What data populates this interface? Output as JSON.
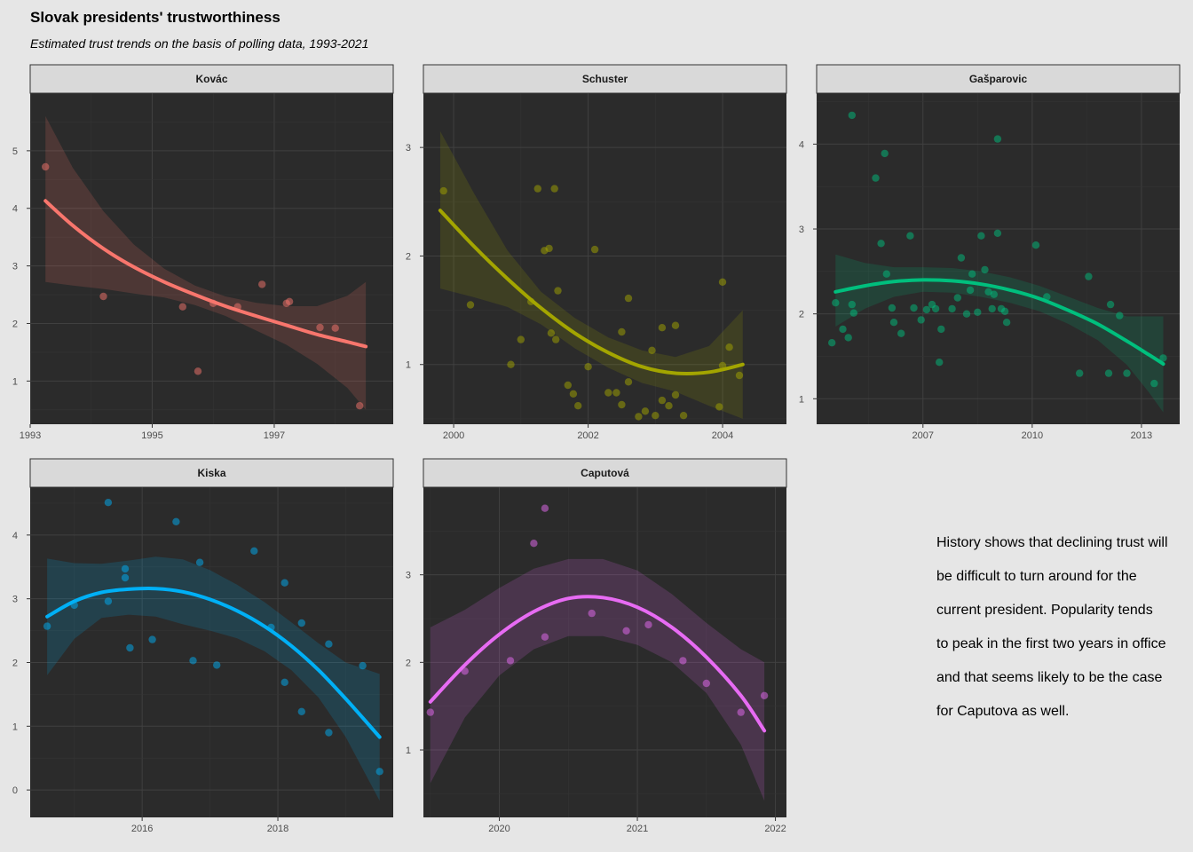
{
  "title": "Slovak presidents' trustworthiness",
  "subtitle": "Estimated trust trends on the basis of polling data, 1993-2021",
  "annotation_lines": [
    "History shows that declining trust will",
    "be difficult to turn around for the",
    "current president. Popularity tends",
    "to peak in the first two years in office",
    "and that seems likely to be the case",
    "for Caputova as well."
  ],
  "colors": {
    "panel_bg": "#2b2b2b",
    "strip_bg": "#d9d9d9",
    "grid": "#3a3a3a",
    "page_bg": "#e6e6e6"
  },
  "chart_data": [
    {
      "type": "scatter",
      "title": "Kovác",
      "color": "#f8766d",
      "xlim": [
        1993.0,
        1998.95
      ],
      "ylim": [
        0.25,
        6.0
      ],
      "xticks": [
        {
          "value": 1993,
          "label": "1993"
        },
        {
          "value": 1995,
          "label": "1995"
        },
        {
          "value": 1997,
          "label": "1997"
        }
      ],
      "yticks": [
        1,
        2,
        3,
        4,
        5
      ],
      "points": [
        [
          1993.25,
          4.72
        ],
        [
          1994.2,
          2.47
        ],
        [
          1995.5,
          2.29
        ],
        [
          1995.75,
          1.17
        ],
        [
          1996.0,
          2.35
        ],
        [
          1996.4,
          2.29
        ],
        [
          1996.8,
          2.68
        ],
        [
          1997.2,
          2.35
        ],
        [
          1997.25,
          2.38
        ],
        [
          1997.75,
          1.93
        ],
        [
          1998.0,
          1.92
        ],
        [
          1998.4,
          0.57
        ]
      ],
      "trend": [
        [
          1993.25,
          4.13
        ],
        [
          1993.7,
          3.7
        ],
        [
          1994.2,
          3.3
        ],
        [
          1994.7,
          2.98
        ],
        [
          1995.2,
          2.72
        ],
        [
          1995.7,
          2.5
        ],
        [
          1996.2,
          2.3
        ],
        [
          1996.7,
          2.13
        ],
        [
          1997.2,
          1.97
        ],
        [
          1997.7,
          1.81
        ],
        [
          1998.2,
          1.68
        ],
        [
          1998.5,
          1.6
        ]
      ],
      "band": [
        [
          1993.25,
          5.6,
          2.72
        ],
        [
          1993.7,
          4.7,
          2.66
        ],
        [
          1994.2,
          3.95,
          2.6
        ],
        [
          1994.7,
          3.37,
          2.52
        ],
        [
          1995.2,
          2.95,
          2.45
        ],
        [
          1995.7,
          2.66,
          2.32
        ],
        [
          1996.2,
          2.47,
          2.13
        ],
        [
          1996.7,
          2.36,
          1.88
        ],
        [
          1997.2,
          2.3,
          1.63
        ],
        [
          1997.7,
          2.3,
          1.3
        ],
        [
          1998.2,
          2.48,
          0.88
        ],
        [
          1998.5,
          2.72,
          0.5
        ]
      ]
    },
    {
      "type": "scatter",
      "title": "Schuster",
      "color": "#a3a500",
      "xlim": [
        1999.55,
        2004.95
      ],
      "ylim": [
        0.45,
        3.5
      ],
      "xticks": [
        {
          "value": 2000,
          "label": "2000"
        },
        {
          "value": 2002,
          "label": "2002"
        },
        {
          "value": 2004,
          "label": "2004"
        }
      ],
      "yticks": [
        1,
        2,
        3
      ],
      "points": [
        [
          1999.85,
          2.6
        ],
        [
          2000.25,
          1.55
        ],
        [
          2000.85,
          1.0
        ],
        [
          2001.0,
          1.23
        ],
        [
          2001.15,
          1.58
        ],
        [
          2001.25,
          2.62
        ],
        [
          2001.35,
          2.05
        ],
        [
          2001.42,
          2.07
        ],
        [
          2001.45,
          1.29
        ],
        [
          2001.5,
          2.62
        ],
        [
          2001.52,
          1.23
        ],
        [
          2001.55,
          1.68
        ],
        [
          2001.7,
          0.81
        ],
        [
          2001.78,
          0.73
        ],
        [
          2001.85,
          0.62
        ],
        [
          2002.0,
          0.98
        ],
        [
          2002.1,
          2.06
        ],
        [
          2002.3,
          0.74
        ],
        [
          2002.42,
          0.74
        ],
        [
          2002.5,
          0.63
        ],
        [
          2002.5,
          1.3
        ],
        [
          2002.6,
          1.61
        ],
        [
          2002.6,
          0.84
        ],
        [
          2002.75,
          0.52
        ],
        [
          2002.85,
          0.57
        ],
        [
          2002.95,
          1.13
        ],
        [
          2003.0,
          0.53
        ],
        [
          2003.1,
          1.34
        ],
        [
          2003.1,
          0.67
        ],
        [
          2003.2,
          0.62
        ],
        [
          2003.3,
          0.72
        ],
        [
          2003.3,
          1.36
        ],
        [
          2003.42,
          0.53
        ],
        [
          2003.95,
          0.61
        ],
        [
          2004.0,
          1.76
        ],
        [
          2004.0,
          0.99
        ],
        [
          2004.1,
          1.16
        ],
        [
          2004.25,
          0.9
        ]
      ],
      "trend": [
        [
          1999.8,
          2.42
        ],
        [
          2000.3,
          2.09
        ],
        [
          2000.8,
          1.79
        ],
        [
          2001.3,
          1.52
        ],
        [
          2001.8,
          1.29
        ],
        [
          2002.3,
          1.11
        ],
        [
          2002.8,
          0.98
        ],
        [
          2003.3,
          0.92
        ],
        [
          2003.8,
          0.93
        ],
        [
          2004.3,
          1.0
        ]
      ],
      "band": [
        [
          1999.8,
          3.15,
          1.7
        ],
        [
          2000.3,
          2.58,
          1.62
        ],
        [
          2000.8,
          2.05,
          1.53
        ],
        [
          2001.3,
          1.67,
          1.37
        ],
        [
          2001.8,
          1.43,
          1.15
        ],
        [
          2002.3,
          1.25,
          0.97
        ],
        [
          2002.8,
          1.13,
          0.83
        ],
        [
          2003.3,
          1.07,
          0.75
        ],
        [
          2003.8,
          1.17,
          0.62
        ],
        [
          2004.3,
          1.5,
          0.5
        ]
      ]
    },
    {
      "type": "scatter",
      "title": "Gašparovic",
      "color": "#00bf7d",
      "xlim": [
        2004.08,
        2014.05
      ],
      "ylim": [
        0.7,
        4.6
      ],
      "xticks": [
        {
          "value": 2007,
          "label": "2007"
        },
        {
          "value": 2010,
          "label": "2010"
        },
        {
          "value": 2013,
          "label": "2013"
        }
      ],
      "yticks": [
        1,
        2,
        3,
        4
      ],
      "points": [
        [
          2004.5,
          1.66
        ],
        [
          2004.6,
          2.13
        ],
        [
          2004.8,
          1.82
        ],
        [
          2004.95,
          1.72
        ],
        [
          2005.05,
          4.34
        ],
        [
          2005.05,
          2.11
        ],
        [
          2005.1,
          2.01
        ],
        [
          2005.7,
          3.6
        ],
        [
          2005.85,
          2.83
        ],
        [
          2005.95,
          3.89
        ],
        [
          2006.0,
          2.47
        ],
        [
          2006.15,
          2.07
        ],
        [
          2006.2,
          1.9
        ],
        [
          2006.4,
          1.77
        ],
        [
          2006.65,
          2.92
        ],
        [
          2006.75,
          2.07
        ],
        [
          2006.95,
          1.93
        ],
        [
          2007.1,
          2.05
        ],
        [
          2007.25,
          2.11
        ],
        [
          2007.35,
          2.06
        ],
        [
          2007.45,
          1.43
        ],
        [
          2007.5,
          1.82
        ],
        [
          2007.8,
          2.06
        ],
        [
          2007.95,
          2.19
        ],
        [
          2008.05,
          2.66
        ],
        [
          2008.2,
          2.0
        ],
        [
          2008.3,
          2.28
        ],
        [
          2008.35,
          2.47
        ],
        [
          2008.5,
          2.02
        ],
        [
          2008.6,
          2.92
        ],
        [
          2008.7,
          2.52
        ],
        [
          2008.8,
          2.26
        ],
        [
          2008.9,
          2.06
        ],
        [
          2008.95,
          2.23
        ],
        [
          2009.05,
          4.06
        ],
        [
          2009.05,
          2.95
        ],
        [
          2009.15,
          2.06
        ],
        [
          2009.25,
          2.03
        ],
        [
          2009.3,
          1.9
        ],
        [
          2010.1,
          2.81
        ],
        [
          2010.4,
          2.2
        ],
        [
          2011.3,
          1.3
        ],
        [
          2011.55,
          2.44
        ],
        [
          2012.1,
          1.3
        ],
        [
          2012.15,
          2.11
        ],
        [
          2012.4,
          1.98
        ],
        [
          2012.6,
          1.3
        ],
        [
          2013.35,
          1.18
        ],
        [
          2013.6,
          1.48
        ]
      ],
      "trend": [
        [
          2004.6,
          2.26
        ],
        [
          2005.4,
          2.33
        ],
        [
          2006.2,
          2.38
        ],
        [
          2007.0,
          2.4
        ],
        [
          2007.8,
          2.39
        ],
        [
          2008.6,
          2.35
        ],
        [
          2009.4,
          2.28
        ],
        [
          2010.2,
          2.18
        ],
        [
          2011.0,
          2.04
        ],
        [
          2011.8,
          1.88
        ],
        [
          2012.6,
          1.68
        ],
        [
          2013.2,
          1.52
        ],
        [
          2013.6,
          1.41
        ]
      ],
      "band": [
        [
          2004.6,
          2.7,
          1.85
        ],
        [
          2005.4,
          2.6,
          2.06
        ],
        [
          2006.2,
          2.55,
          2.2
        ],
        [
          2007.0,
          2.55,
          2.26
        ],
        [
          2007.8,
          2.54,
          2.25
        ],
        [
          2008.6,
          2.5,
          2.2
        ],
        [
          2009.4,
          2.43,
          2.13
        ],
        [
          2010.2,
          2.33,
          2.03
        ],
        [
          2011.0,
          2.2,
          1.88
        ],
        [
          2011.8,
          2.07,
          1.69
        ],
        [
          2012.6,
          1.97,
          1.4
        ],
        [
          2013.2,
          1.97,
          1.08
        ],
        [
          2013.6,
          1.97,
          0.84
        ]
      ]
    },
    {
      "type": "scatter",
      "title": "Kiska",
      "color": "#00b0f6",
      "xlim": [
        2014.35,
        2019.7
      ],
      "ylim": [
        -0.43,
        4.75
      ],
      "xticks": [
        {
          "value": 2016,
          "label": "2016"
        },
        {
          "value": 2018,
          "label": "2018"
        }
      ],
      "yticks": [
        0,
        1,
        2,
        3,
        4
      ],
      "points": [
        [
          2014.6,
          2.57
        ],
        [
          2015.0,
          2.9
        ],
        [
          2015.5,
          4.51
        ],
        [
          2015.5,
          2.96
        ],
        [
          2015.75,
          3.47
        ],
        [
          2015.75,
          3.33
        ],
        [
          2015.82,
          2.23
        ],
        [
          2016.15,
          2.36
        ],
        [
          2016.5,
          4.21
        ],
        [
          2016.75,
          2.03
        ],
        [
          2016.85,
          3.57
        ],
        [
          2017.1,
          1.96
        ],
        [
          2017.65,
          3.75
        ],
        [
          2017.9,
          2.55
        ],
        [
          2018.1,
          3.25
        ],
        [
          2018.1,
          1.69
        ],
        [
          2018.35,
          2.62
        ],
        [
          2018.35,
          1.23
        ],
        [
          2018.75,
          2.29
        ],
        [
          2018.75,
          0.9
        ],
        [
          2019.25,
          1.95
        ],
        [
          2019.5,
          0.29
        ]
      ],
      "trend": [
        [
          2014.6,
          2.72
        ],
        [
          2015.0,
          2.96
        ],
        [
          2015.4,
          3.1
        ],
        [
          2015.8,
          3.15
        ],
        [
          2016.2,
          3.16
        ],
        [
          2016.6,
          3.11
        ],
        [
          2017.0,
          2.99
        ],
        [
          2017.4,
          2.81
        ],
        [
          2017.8,
          2.57
        ],
        [
          2018.2,
          2.26
        ],
        [
          2018.6,
          1.88
        ],
        [
          2019.0,
          1.43
        ],
        [
          2019.5,
          0.83
        ]
      ],
      "band": [
        [
          2014.6,
          3.63,
          1.8
        ],
        [
          2015.0,
          3.56,
          2.37
        ],
        [
          2015.4,
          3.55,
          2.7
        ],
        [
          2015.8,
          3.6,
          2.75
        ],
        [
          2016.2,
          3.66,
          2.72
        ],
        [
          2016.6,
          3.62,
          2.6
        ],
        [
          2017.0,
          3.45,
          2.5
        ],
        [
          2017.4,
          3.22,
          2.38
        ],
        [
          2017.8,
          2.95,
          2.18
        ],
        [
          2018.2,
          2.63,
          1.88
        ],
        [
          2018.6,
          2.3,
          1.45
        ],
        [
          2019.0,
          2.0,
          0.83
        ],
        [
          2019.5,
          1.82,
          -0.17
        ]
      ]
    },
    {
      "type": "scatter",
      "title": "Caputová",
      "color": "#e76bf3",
      "xlim": [
        2019.45,
        2022.08
      ],
      "ylim": [
        0.23,
        4.0
      ],
      "xticks": [
        {
          "value": 2020,
          "label": "2020"
        },
        {
          "value": 2021,
          "label": "2021"
        },
        {
          "value": 2022,
          "label": "2022"
        }
      ],
      "yticks": [
        1,
        2,
        3
      ],
      "points": [
        [
          2019.5,
          1.43
        ],
        [
          2019.75,
          1.9
        ],
        [
          2020.08,
          2.02
        ],
        [
          2020.25,
          3.36
        ],
        [
          2020.33,
          3.76
        ],
        [
          2020.33,
          2.29
        ],
        [
          2020.67,
          2.56
        ],
        [
          2020.92,
          2.36
        ],
        [
          2021.08,
          2.43
        ],
        [
          2021.33,
          2.02
        ],
        [
          2021.5,
          1.76
        ],
        [
          2021.75,
          1.43
        ],
        [
          2021.92,
          1.62
        ]
      ],
      "trend": [
        [
          2019.5,
          1.55
        ],
        [
          2019.75,
          1.97
        ],
        [
          2020.0,
          2.32
        ],
        [
          2020.25,
          2.58
        ],
        [
          2020.5,
          2.73
        ],
        [
          2020.75,
          2.74
        ],
        [
          2021.0,
          2.63
        ],
        [
          2021.25,
          2.4
        ],
        [
          2021.5,
          2.06
        ],
        [
          2021.75,
          1.62
        ],
        [
          2021.92,
          1.22
        ]
      ],
      "band": [
        [
          2019.5,
          2.4,
          0.62
        ],
        [
          2019.75,
          2.6,
          1.37
        ],
        [
          2020.0,
          2.85,
          1.85
        ],
        [
          2020.25,
          3.07,
          2.15
        ],
        [
          2020.5,
          3.18,
          2.3
        ],
        [
          2020.75,
          3.18,
          2.3
        ],
        [
          2021.0,
          3.05,
          2.2
        ],
        [
          2021.25,
          2.78,
          2.0
        ],
        [
          2021.5,
          2.45,
          1.65
        ],
        [
          2021.75,
          2.15,
          1.06
        ],
        [
          2021.92,
          2.0,
          0.42
        ]
      ]
    }
  ]
}
